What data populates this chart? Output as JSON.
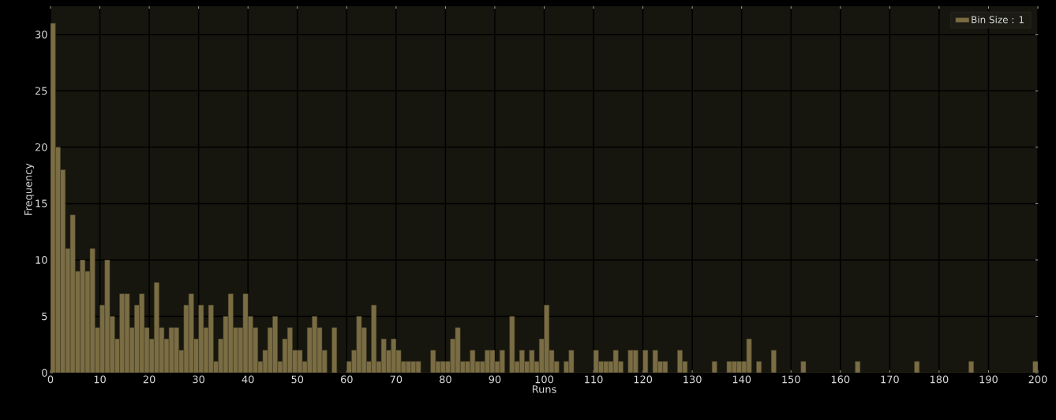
{
  "chart_data": {
    "type": "histogram",
    "xlabel": "Runs",
    "ylabel": "Frequency",
    "bins": [
      0,
      1,
      2,
      3,
      4,
      5,
      6,
      7,
      8,
      9,
      10,
      11,
      12,
      13,
      14,
      15,
      16,
      17,
      18,
      19,
      20,
      21,
      22,
      23,
      24,
      25,
      26,
      27,
      28,
      29,
      30,
      31,
      32,
      33,
      34,
      35,
      36,
      37,
      38,
      39,
      40,
      41,
      42,
      43,
      44,
      45,
      46,
      47,
      48,
      49,
      50,
      51,
      52,
      53,
      54,
      55,
      56,
      57,
      58,
      59,
      60,
      61,
      62,
      63,
      64,
      65,
      66,
      67,
      68,
      69,
      70,
      71,
      72,
      73,
      74,
      75,
      76,
      77,
      78,
      79,
      80,
      81,
      82,
      83,
      84,
      85,
      86,
      87,
      88,
      89,
      90,
      91,
      92,
      93,
      94,
      95,
      96,
      97,
      98,
      99,
      100,
      101,
      102,
      103,
      104,
      105,
      106,
      107,
      108,
      109,
      110,
      111,
      112,
      113,
      114,
      115,
      116,
      117,
      118,
      119,
      120,
      121,
      122,
      123,
      124,
      125,
      126,
      127,
      128,
      129,
      130,
      131,
      132,
      133,
      134,
      135,
      136,
      137,
      138,
      139,
      140,
      141,
      142,
      143,
      144,
      145,
      146,
      147,
      148,
      149,
      150,
      151,
      152,
      153,
      154,
      155,
      156,
      157,
      158,
      159,
      160,
      161,
      162,
      163,
      164,
      165,
      166,
      167,
      168,
      169,
      170,
      171,
      172,
      173,
      174,
      175,
      176,
      177,
      178,
      179,
      180,
      181,
      182,
      183,
      184,
      185,
      186,
      187,
      188,
      189,
      190,
      191,
      192,
      193,
      194,
      195,
      196,
      197,
      198,
      199,
      200
    ],
    "series": [
      {
        "name": "Bin Size : 1",
        "color": "#7a6d44",
        "values": [
          31,
          20,
          18,
          11,
          14,
          9,
          10,
          9,
          11,
          4,
          6,
          10,
          5,
          3,
          7,
          7,
          4,
          6,
          7,
          4,
          3,
          8,
          4,
          3,
          4,
          4,
          2,
          6,
          7,
          3,
          6,
          4,
          6,
          1,
          3,
          5,
          7,
          4,
          4,
          7,
          5,
          4,
          1,
          2,
          4,
          5,
          1,
          3,
          4,
          2,
          2,
          1,
          4,
          5,
          4,
          2,
          0,
          4,
          0,
          0,
          1,
          2,
          5,
          4,
          1,
          6,
          1,
          3,
          2,
          3,
          2,
          1,
          1,
          1,
          1,
          0,
          0,
          2,
          1,
          1,
          1,
          3,
          4,
          1,
          1,
          2,
          1,
          1,
          2,
          2,
          1,
          2,
          0,
          5,
          1,
          2,
          1,
          2,
          1,
          3,
          6,
          2,
          1,
          0,
          1,
          2,
          0,
          0,
          0,
          0,
          2,
          1,
          1,
          1,
          2,
          1,
          0,
          2,
          2,
          0,
          2,
          0,
          2,
          1,
          1,
          0,
          0,
          2,
          1,
          0,
          0,
          0,
          0,
          0,
          1,
          0,
          0,
          1,
          1,
          1,
          1,
          3,
          0,
          1,
          0,
          0,
          2,
          0,
          0,
          0,
          0,
          0,
          1,
          0,
          0,
          0,
          0,
          0,
          0,
          0,
          0,
          0,
          0,
          1,
          0,
          0,
          0,
          0,
          0,
          0,
          0,
          0,
          0,
          0,
          0,
          1,
          0,
          0,
          0,
          0,
          0,
          0,
          0,
          0,
          0,
          0,
          1,
          0,
          0,
          0,
          0,
          0,
          0,
          0,
          0,
          0,
          0,
          0,
          0,
          1
        ]
      }
    ],
    "xlim": [
      0,
      200
    ],
    "ylim": [
      0,
      32.5
    ],
    "xticks": [
      0,
      10,
      20,
      30,
      40,
      50,
      60,
      70,
      80,
      90,
      100,
      110,
      120,
      130,
      140,
      150,
      160,
      170,
      180,
      190,
      200
    ],
    "yticks": [
      0,
      5,
      10,
      15,
      20,
      25,
      30
    ],
    "grid": true,
    "legend": "top right"
  }
}
